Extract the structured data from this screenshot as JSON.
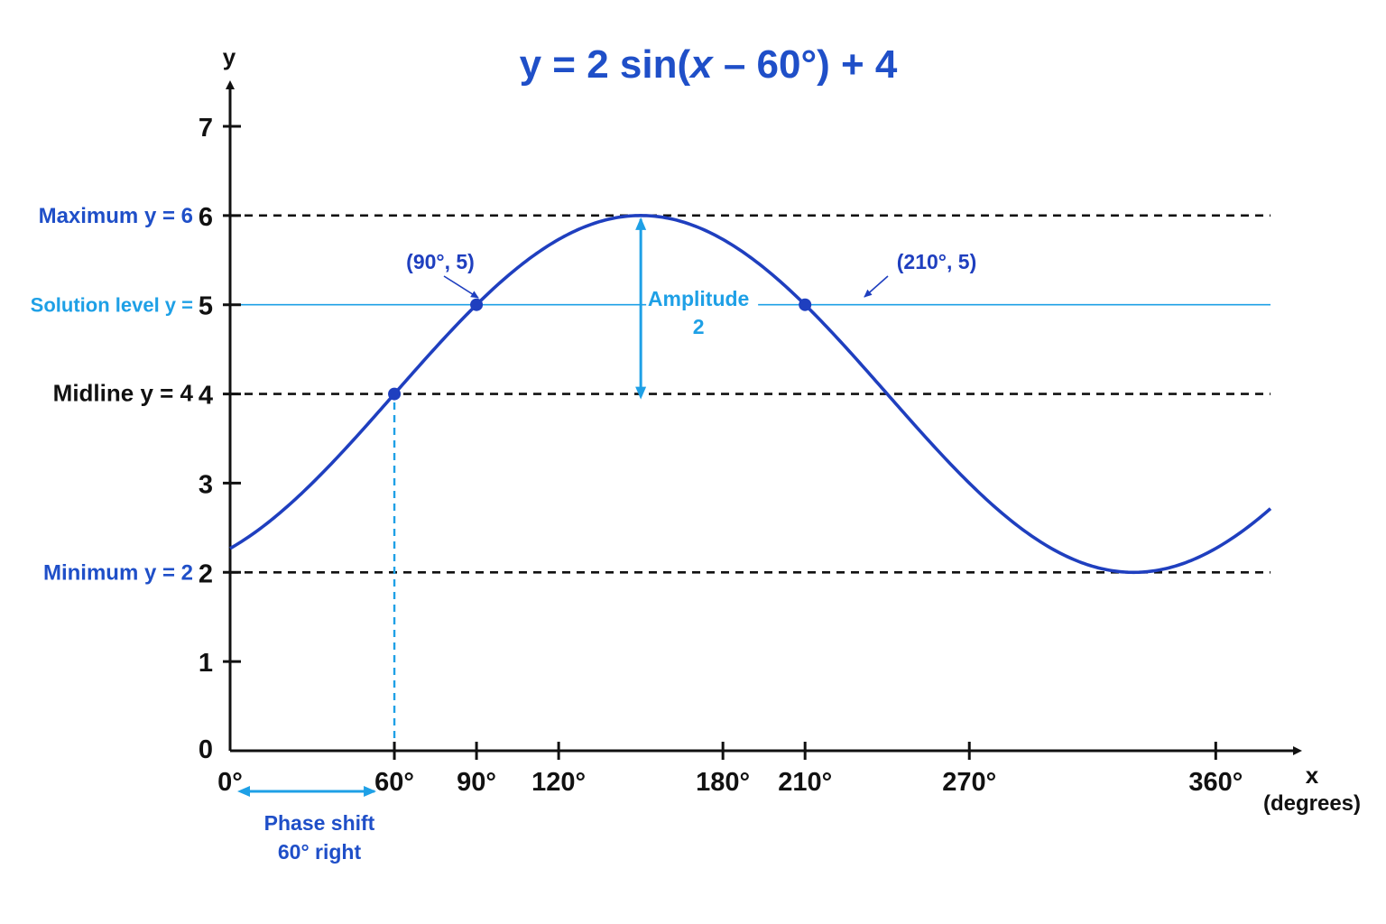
{
  "chart_data": {
    "type": "line",
    "title_parts": [
      "y = 2 sin",
      "(",
      "x",
      " – 60°",
      ")",
      " + 4"
    ],
    "xlabel": "x",
    "xlabel_unit": "(degrees)",
    "ylabel": "y",
    "xlim": [
      0,
      380
    ],
    "ylim": [
      0,
      7
    ],
    "x_ticks": [
      {
        "value": 0,
        "label": "0°"
      },
      {
        "value": 60,
        "label": "60°"
      },
      {
        "value": 90,
        "label": "90°"
      },
      {
        "value": 120,
        "label": "120°"
      },
      {
        "value": 180,
        "label": "180°"
      },
      {
        "value": 210,
        "label": "210°"
      },
      {
        "value": 270,
        "label": "270°"
      },
      {
        "value": 360,
        "label": "360°"
      }
    ],
    "y_ticks": [
      0,
      1,
      2,
      3,
      4,
      5,
      6,
      7
    ],
    "series": [
      {
        "function": "2*sin(x-60)+4",
        "x_start": 0,
        "x_end": 380,
        "color": "#1f3fbf"
      }
    ],
    "reference_lines": [
      {
        "y": 6,
        "label": "Maximum y = 6",
        "style": "dashed",
        "color": "#111111",
        "label_color": "#1f4fc8"
      },
      {
        "y": 5,
        "label": "Solution level y =",
        "style": "solid",
        "color": "#1ea0e6",
        "label_color": "#1ea0e6"
      },
      {
        "y": 4,
        "label": "Midline y = 4",
        "style": "dashed",
        "color": "#111111",
        "label_color": "#111111"
      },
      {
        "y": 2,
        "label": "Minimum y = 2",
        "style": "dashed",
        "color": "#111111",
        "label_color": "#1f4fc8"
      }
    ],
    "points": [
      {
        "x": 60,
        "y": 4,
        "label": ""
      },
      {
        "x": 90,
        "y": 5,
        "label": "(90°, 5)"
      },
      {
        "x": 210,
        "y": 5,
        "label": "(210°, 5)"
      }
    ],
    "annotations": {
      "amplitude": {
        "lines": [
          "Amplitude",
          "2"
        ],
        "x": 150,
        "y_from": 4,
        "y_to": 6
      },
      "phase_shift": {
        "lines": [
          "Phase shift",
          "60° right"
        ],
        "x_from": 0,
        "x_to": 60
      },
      "phase_line": {
        "x": 60,
        "y_from": 0,
        "y_to": 4
      }
    },
    "grid": false,
    "colors": {
      "curve": "#1f3fbf",
      "title": "#1f4fc8",
      "accent": "#1ea0e6",
      "axis": "#111111"
    }
  }
}
